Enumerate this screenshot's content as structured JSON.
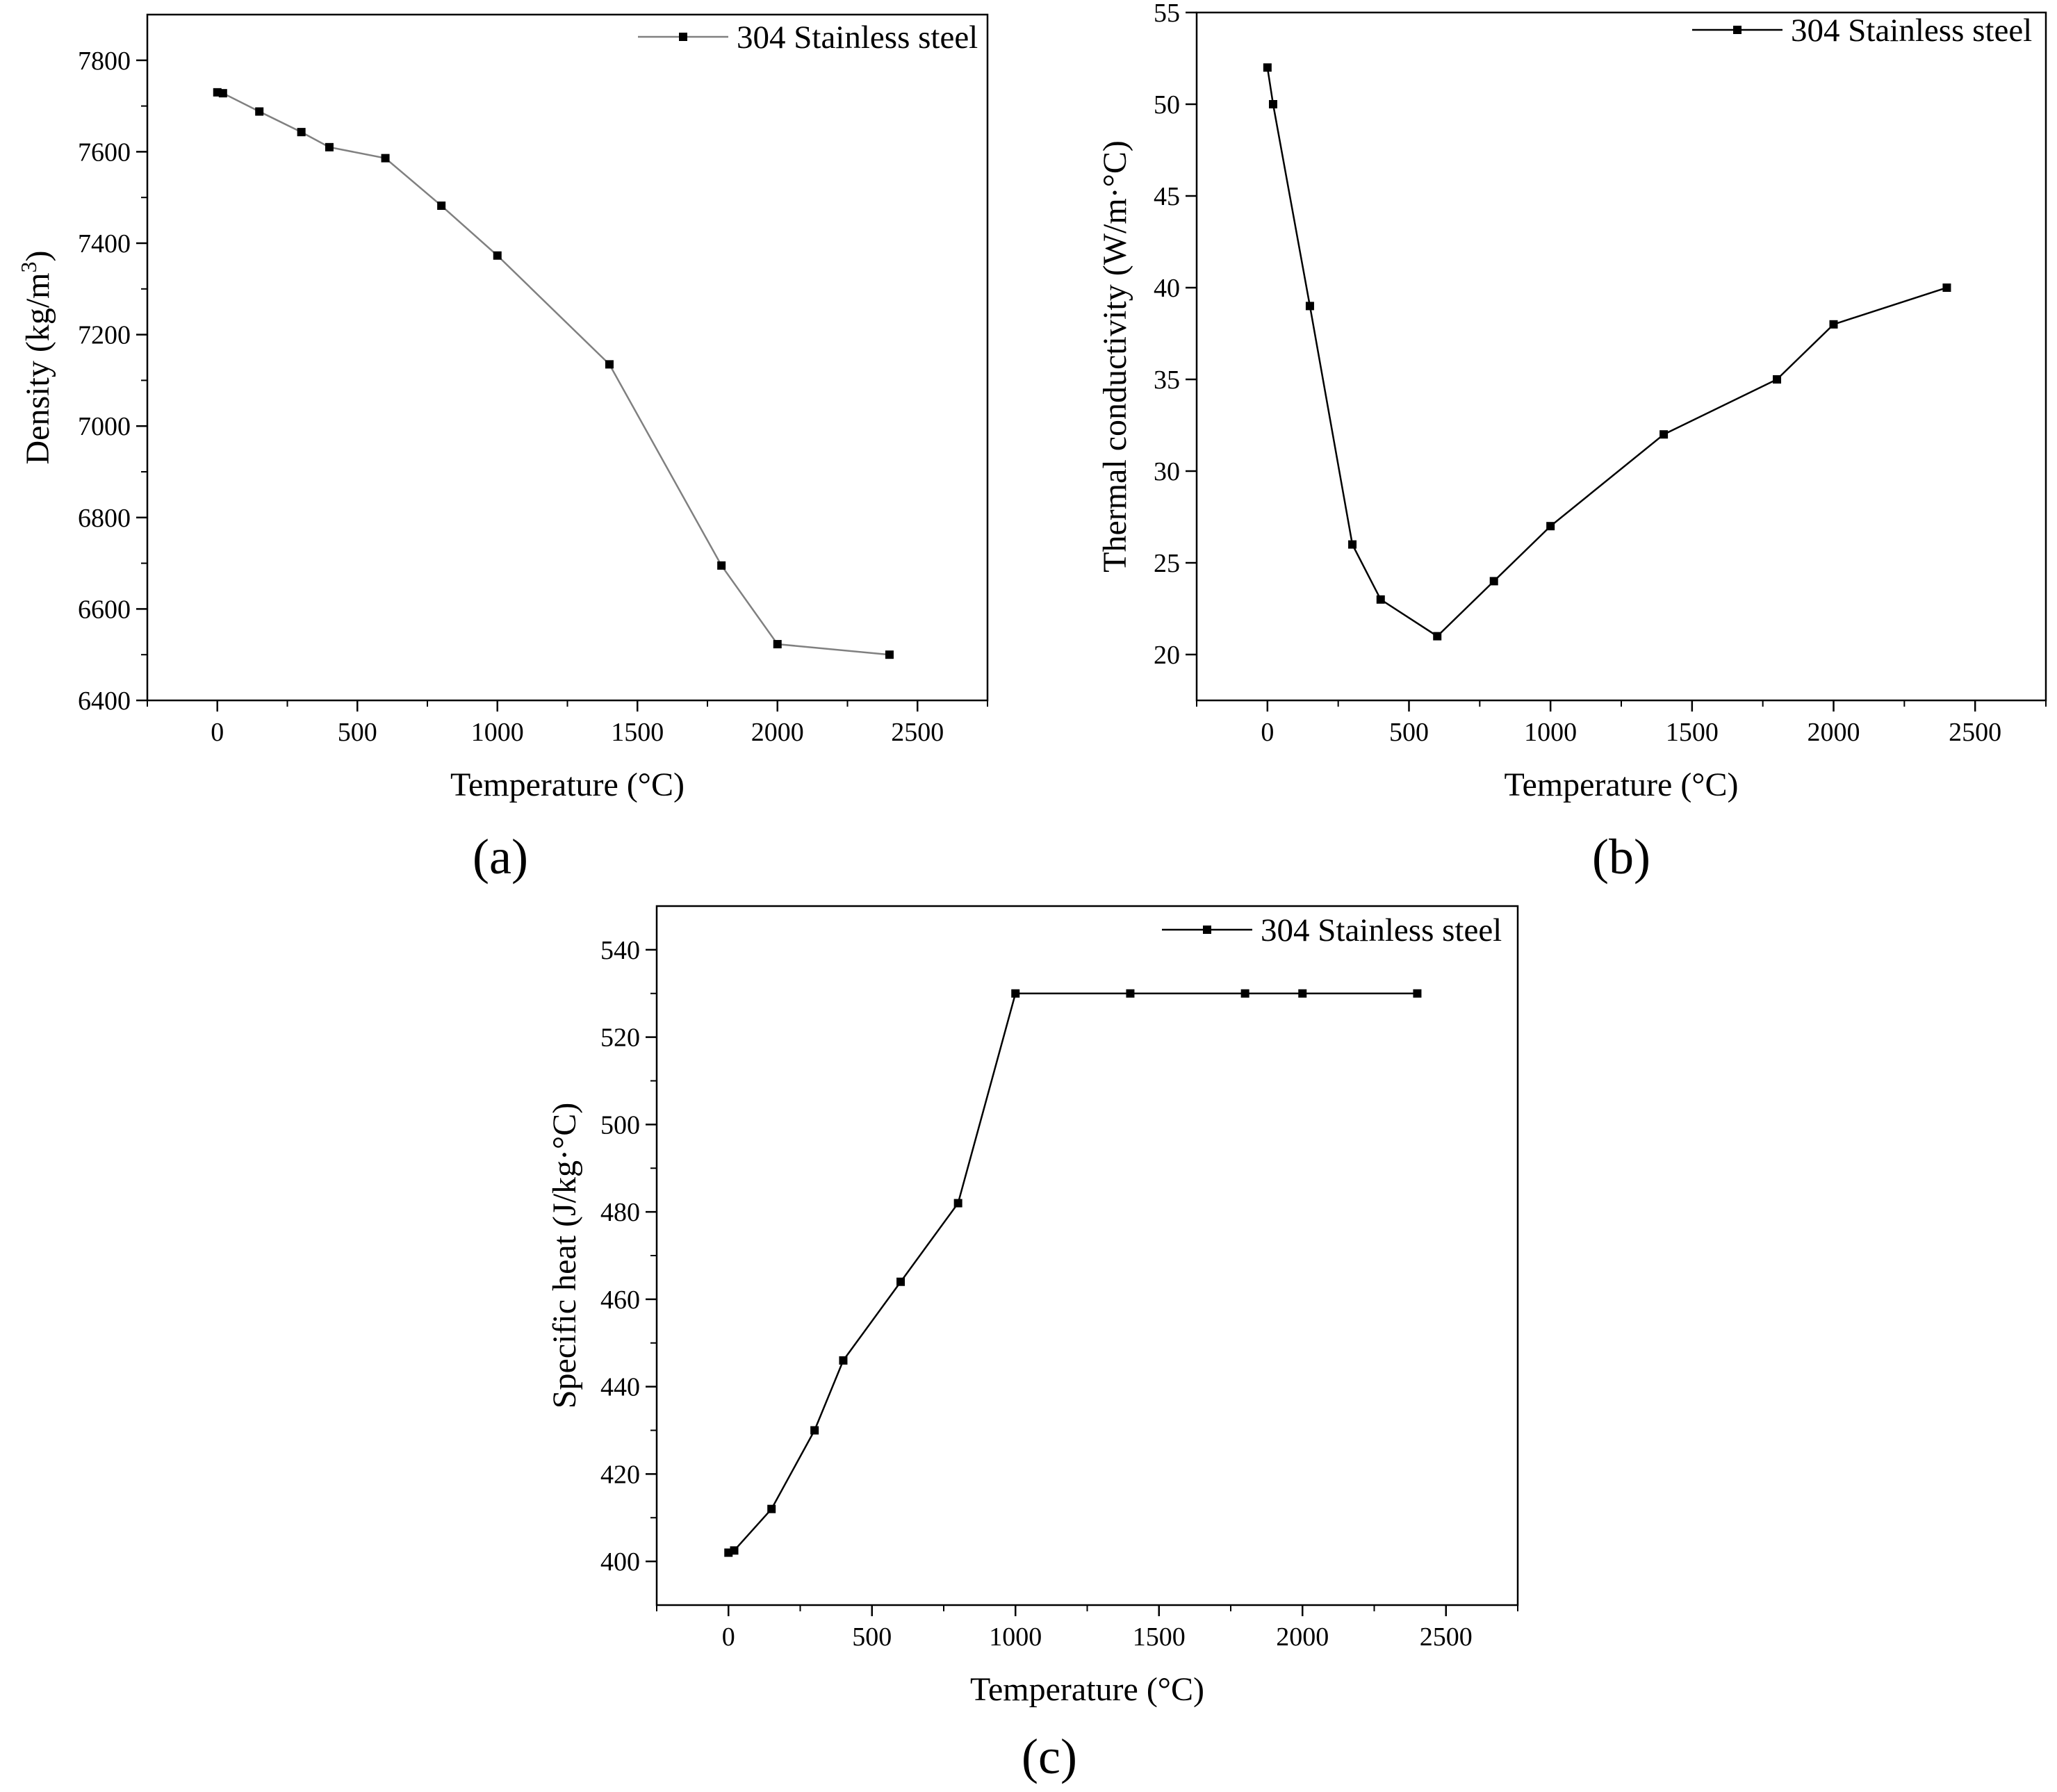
{
  "chart_data": [
    {
      "id": "a",
      "type": "line",
      "panel_label": "(a)",
      "xlabel": "Temperature (°C)",
      "ylabel_main": "Density (kg/m",
      "ylabel_sup": "3",
      "ylabel_end": ")",
      "xlim": [
        -250,
        2750
      ],
      "ylim": [
        6400,
        7900
      ],
      "xticks": [
        0,
        500,
        1000,
        1500,
        2000,
        2500
      ],
      "yticks": [
        6400,
        6600,
        6800,
        7000,
        7200,
        7400,
        7600,
        7800
      ],
      "series": [
        {
          "name": "304 Stainless steel",
          "color": "#808080",
          "x": [
            0,
            20,
            150,
            300,
            400,
            600,
            800,
            1000,
            1400,
            1800,
            2000,
            2400
          ],
          "y": [
            7730,
            7728,
            7688,
            7643,
            7610,
            7586,
            7482,
            7373,
            7135,
            6695,
            6523,
            6500
          ]
        }
      ]
    },
    {
      "id": "b",
      "type": "line",
      "panel_label": "(b)",
      "xlabel": "Temperature (°C)",
      "ylabel_main": "Thermal conductivity (W/m·°C)",
      "xlim": [
        -250,
        2750
      ],
      "ylim": [
        17.5,
        55
      ],
      "xticks": [
        0,
        500,
        1000,
        1500,
        2000,
        2500
      ],
      "yticks": [
        20,
        25,
        30,
        35,
        40,
        45,
        50,
        55
      ],
      "series": [
        {
          "name": "304 Stainless steel",
          "color": "#000000",
          "x": [
            0,
            20,
            150,
            300,
            400,
            600,
            800,
            1000,
            1400,
            1800,
            2000,
            2400
          ],
          "y": [
            52,
            50,
            39,
            26,
            23,
            21,
            24,
            27,
            32,
            35,
            38,
            40
          ]
        }
      ]
    },
    {
      "id": "c",
      "type": "line",
      "panel_label": "(c)",
      "xlabel": "Temperature (°C)",
      "ylabel_main": "Specific heat (J/kg·°C)",
      "xlim": [
        -250,
        2750
      ],
      "ylim": [
        390,
        550
      ],
      "xticks": [
        0,
        500,
        1000,
        1500,
        2000,
        2500
      ],
      "yticks": [
        400,
        420,
        440,
        460,
        480,
        500,
        520,
        540
      ],
      "series": [
        {
          "name": "304 Stainless steel",
          "color": "#000000",
          "x": [
            0,
            20,
            150,
            300,
            400,
            600,
            800,
            1000,
            1400,
            1800,
            2000,
            2400
          ],
          "y": [
            402,
            402.5,
            412,
            430,
            446,
            464,
            482,
            530,
            530,
            530,
            530,
            530
          ]
        }
      ]
    }
  ]
}
